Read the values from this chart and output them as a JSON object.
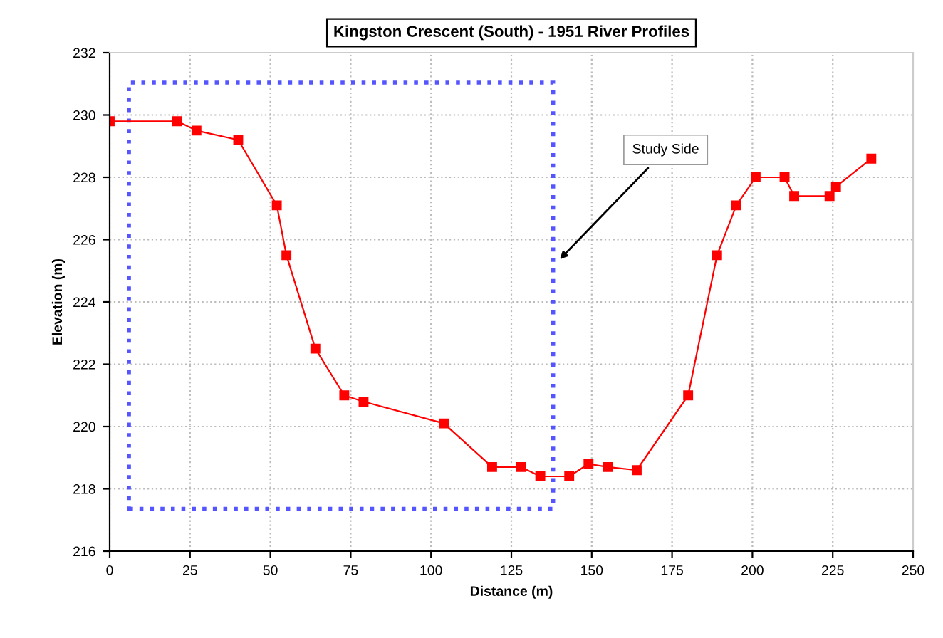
{
  "chart_data": {
    "type": "line",
    "title": "Kingston Crescent (South) - 1951 River Profiles",
    "xlabel": "Distance (m)",
    "ylabel": "Elevation (m)",
    "series": [
      {
        "color": "#ff0000",
        "x": [
          0,
          21,
          27,
          40,
          52,
          55,
          64,
          73,
          79,
          104,
          119,
          128,
          134,
          143,
          149,
          155,
          164,
          180,
          189,
          195,
          201,
          210,
          213,
          224,
          226,
          237
        ],
        "values": [
          229.8,
          229.8,
          229.5,
          229.2,
          227.1,
          225.5,
          222.5,
          221.0,
          220.8,
          220.1,
          218.7,
          218.7,
          218.4,
          218.4,
          218.8,
          218.7,
          218.6,
          221.0,
          225.5,
          227.1,
          228.0,
          228.0,
          227.4,
          227.4,
          227.7,
          228.6
        ]
      }
    ],
    "marker": "square",
    "line_style": "solid",
    "xlim": [
      0,
      250
    ],
    "xticks": [
      0,
      25,
      50,
      75,
      100,
      125,
      150,
      175,
      200,
      225,
      250
    ],
    "ylim": [
      216,
      232
    ],
    "yticks": [
      216,
      218,
      220,
      222,
      224,
      226,
      228,
      230,
      232
    ],
    "grid": true,
    "legend": false,
    "annotations": [
      "Study Side"
    ]
  }
}
